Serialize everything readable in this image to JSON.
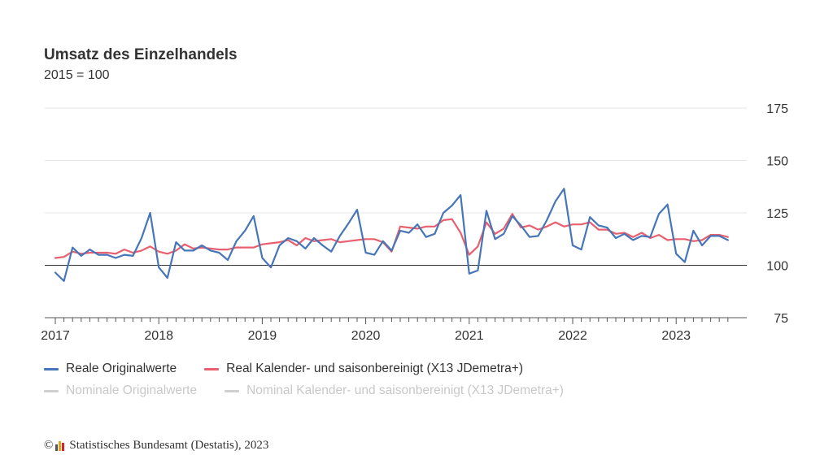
{
  "header": {
    "title": "Umsatz des Einzelhandels",
    "subtitle": "2015 = 100"
  },
  "colors": {
    "real_original": "#4676b7",
    "real_adjusted": "#e8606e",
    "muted": "#cfcfcf",
    "grid": "#e6e6e6",
    "baseline": "#333333"
  },
  "chart_data": {
    "type": "line",
    "title": "Umsatz des Einzelhandels",
    "subtitle": "2015 = 100",
    "x_unit": "month",
    "x_start": "2017-01",
    "ylim": [
      75,
      175
    ],
    "yticks": [
      75,
      100,
      125,
      150,
      175
    ],
    "xticks": [
      "2017",
      "2018",
      "2019",
      "2020",
      "2021",
      "2022",
      "2023"
    ],
    "reference_line": 100,
    "y_axis_position": "right",
    "grid": true,
    "legend_position": "bottom",
    "series": [
      {
        "name": "Reale Originalwerte",
        "color": "#4676b7",
        "values": [
          96.5,
          92.5,
          108.5,
          104.5,
          107.5,
          105,
          105,
          103.5,
          105,
          104.5,
          113,
          125,
          99,
          94,
          111,
          107,
          107,
          109.5,
          107,
          106,
          102.5,
          111.5,
          116.5,
          123.5,
          103.5,
          99,
          109.5,
          113,
          111.5,
          108,
          113,
          109.5,
          106.5,
          114,
          120,
          126.5,
          106,
          105,
          111.5,
          107,
          116.5,
          115.5,
          119.5,
          113.5,
          115,
          125,
          128.5,
          133.5,
          96,
          97.5,
          126,
          112.5,
          115,
          123.5,
          119,
          113.5,
          114,
          121.5,
          130.5,
          136.5,
          109.5,
          107.5,
          123,
          119,
          118,
          113,
          115,
          112,
          114,
          113.5,
          124.5,
          129,
          105.5,
          101.5,
          116.5,
          109.5,
          114,
          114,
          112
        ]
      },
      {
        "name": "Real Kalender- und saisonbereinigt (X13 JDemetra+)",
        "color": "#e8606e",
        "values": [
          103.5,
          104,
          106.5,
          105.5,
          106,
          106,
          106,
          105.5,
          107.5,
          106,
          107,
          109,
          106.5,
          105.5,
          107,
          110,
          108,
          108.5,
          108,
          107.5,
          107.5,
          108.5,
          108.5,
          108.5,
          110,
          110.5,
          111,
          112,
          109.5,
          113,
          111.5,
          112,
          112.5,
          111,
          111.5,
          112,
          112.5,
          112.5,
          111,
          106.5,
          118.5,
          118,
          117.5,
          118.5,
          118.5,
          121.5,
          122,
          115.5,
          105,
          109,
          120.5,
          115,
          117.5,
          124.5,
          118,
          119,
          117,
          118.5,
          120.5,
          118.5,
          119.5,
          119.5,
          120.5,
          117,
          117,
          115,
          115.5,
          113.5,
          115.5,
          113,
          114.5,
          112,
          112.5,
          112.5,
          111.5,
          112,
          114.5,
          114.5,
          113.5
        ]
      }
    ],
    "inactive_series": [
      "Nominale Originalwerte",
      "Nominal Kalender- und saisonbereinigt (X13 JDemetra+)"
    ]
  },
  "legend": {
    "items": [
      {
        "label": "Reale Originalwerte",
        "color": "#4676b7",
        "active": true
      },
      {
        "label": "Real Kalender- und saisonbereinigt (X13 JDemetra+)",
        "color": "#e8606e",
        "active": true
      },
      {
        "label": "Nominale Originalwerte",
        "color": "#cfcfcf",
        "active": false
      },
      {
        "label": "Nominal Kalender- und saisonbereinigt (X13 JDemetra+)",
        "color": "#cfcfcf",
        "active": false
      }
    ]
  },
  "source": {
    "copyright": "©",
    "text": "Statistisches Bundesamt (Destatis), 2023"
  }
}
